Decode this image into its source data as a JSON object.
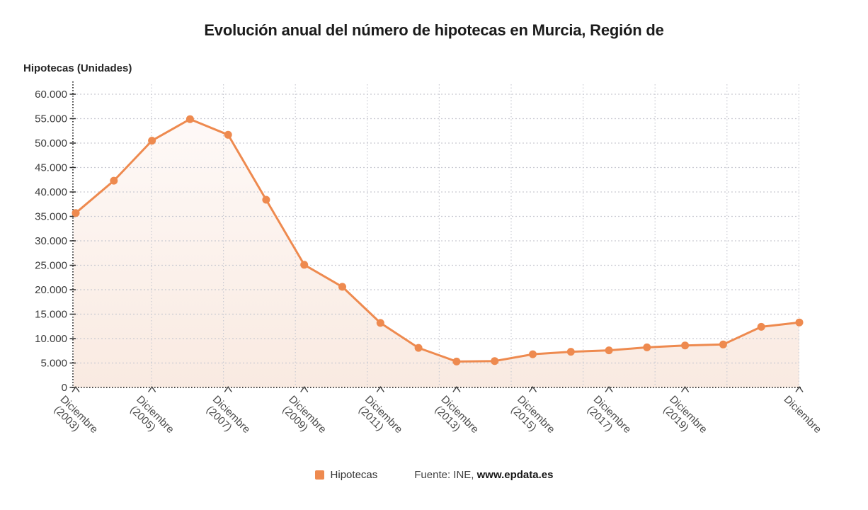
{
  "chart_data": {
    "type": "area",
    "title": "Evolución anual del número de hipotecas en Murcia, Región de",
    "ylabel": "Hipotecas (Unidades)",
    "legend_label": "Hipotecas",
    "source_prefix": "Fuente: INE,",
    "source_link": "www.epdata.es",
    "series": [
      {
        "name": "Hipotecas",
        "x_years": [
          2003,
          2004,
          2005,
          2006,
          2007,
          2008,
          2009,
          2010,
          2011,
          2012,
          2013,
          2014,
          2015,
          2016,
          2017,
          2018,
          2019,
          2020,
          2021,
          2022
        ],
        "values": [
          35700,
          42300,
          50500,
          54900,
          51700,
          38400,
          25100,
          20600,
          13200,
          8100,
          5300,
          5400,
          6800,
          7300,
          7600,
          8200,
          8600,
          8800,
          12400,
          13300
        ]
      }
    ],
    "x_tick_labels": [
      {
        "at_year": 2003,
        "line1": "Diciembre",
        "line2": "(2003)"
      },
      {
        "at_year": 2005,
        "line1": "Diciembre",
        "line2": "(2005)"
      },
      {
        "at_year": 2007,
        "line1": "Diciembre",
        "line2": "(2007)"
      },
      {
        "at_year": 2009,
        "line1": "Diciembre",
        "line2": "(2009)"
      },
      {
        "at_year": 2011,
        "line1": "Diciembre",
        "line2": "(2011)"
      },
      {
        "at_year": 2013,
        "line1": "Diciembre",
        "line2": "(2013)"
      },
      {
        "at_year": 2015,
        "line1": "Diciembre",
        "line2": "(2015)"
      },
      {
        "at_year": 2017,
        "line1": "Diciembre",
        "line2": "(2017)"
      },
      {
        "at_year": 2019,
        "line1": "Diciembre",
        "line2": "(2019)"
      },
      {
        "at_year": 2022,
        "line1": "Diciembre",
        "line2": ""
      }
    ],
    "ylim": [
      0,
      60000
    ],
    "ytick_step": 5000,
    "ytick_labels": [
      "0",
      "5.000",
      "10.000",
      "15.000",
      "20.000",
      "25.000",
      "30.000",
      "35.000",
      "40.000",
      "45.000",
      "50.000",
      "55.000",
      "60.000"
    ],
    "grid": {
      "horizontal": true,
      "vertical_lines": 10,
      "style": "dotted"
    },
    "legend_position": "bottom",
    "colors": {
      "accent": "#EE8A4F",
      "grid": "#C9CAD2",
      "axis": "#2E2E2E",
      "area_top": "#FEF9F7",
      "area_bottom": "#F9EAE1",
      "tick_text": "#3B3B3B",
      "xlabel_text": "#4A4A4A"
    }
  }
}
